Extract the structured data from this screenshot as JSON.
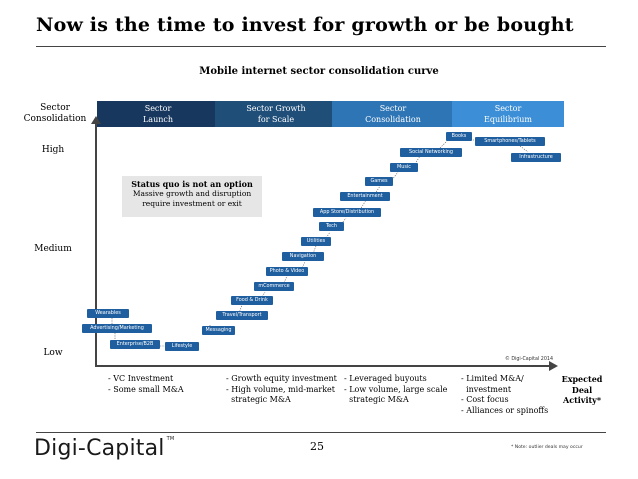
{
  "title": "Now is the time to invest for growth or be bought",
  "subtitle": "Mobile internet sector consolidation curve",
  "y_axis": {
    "title": "Sector\nConsolidation",
    "levels": [
      "High",
      "Medium",
      "Low"
    ]
  },
  "x_axis": {
    "title": "Expected\nDeal\nActivity*"
  },
  "phases": [
    {
      "label": "Sector\nLaunch",
      "color": "#17375e"
    },
    {
      "label": "Sector Growth\nfor Scale",
      "color": "#1f4e79"
    },
    {
      "label": "Sector\nConsolidation",
      "color": "#2e75b6"
    },
    {
      "label": "Sector\nEquilibrium",
      "color": "#3c8fd6"
    }
  ],
  "sectors": [
    {
      "name": "Wearables"
    },
    {
      "name": "Advertising/Marketing"
    },
    {
      "name": "Enterprise/B2B"
    },
    {
      "name": "Lifestyle"
    },
    {
      "name": "Messaging"
    },
    {
      "name": "Travel/Transport"
    },
    {
      "name": "Food & Drink"
    },
    {
      "name": "mCommerce"
    },
    {
      "name": "Photo & Video"
    },
    {
      "name": "Navigation"
    },
    {
      "name": "Utilities"
    },
    {
      "name": "Tech"
    },
    {
      "name": "App Store/Distribution"
    },
    {
      "name": "Entertainment"
    },
    {
      "name": "Games"
    },
    {
      "name": "Music"
    },
    {
      "name": "Social Networking"
    },
    {
      "name": "Books"
    },
    {
      "name": "Smartphones/Tablets"
    },
    {
      "name": "Infrastructure"
    }
  ],
  "status_box": {
    "heading": "Status quo is not an option",
    "line1": "Massive growth and disruption",
    "line2": "require investment or exit"
  },
  "phase_notes": [
    [
      "- VC Investment",
      "- Some small M&A"
    ],
    [
      "- Growth equity investment",
      "- High volume, mid-market",
      "  strategic M&A"
    ],
    [
      "- Leveraged buyouts",
      "- Low volume, large scale",
      "  strategic M&A"
    ],
    [
      "- Limited M&A/",
      "  investment",
      "- Cost focus",
      "- Alliances or spinoffs"
    ]
  ],
  "copyright": "© Digi-Capital 2014",
  "footer": {
    "logo": "Digi-Capital",
    "tm": "TM",
    "page": "25",
    "note": "* Note: outlier deals may occur"
  }
}
